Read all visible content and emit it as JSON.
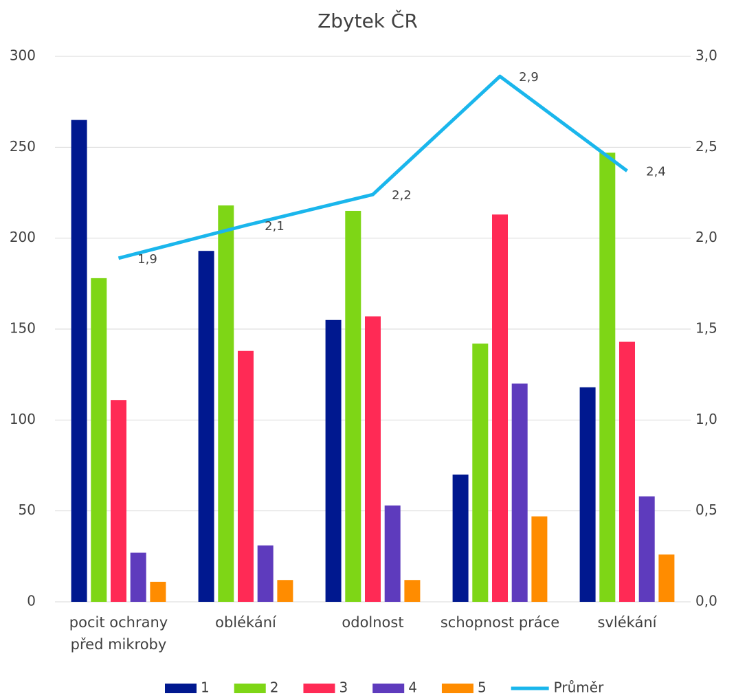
{
  "chart_data": {
    "type": "bar",
    "title": "Zbytek ČR",
    "categories": [
      "pocit ochrany před mikroby",
      "oblékání",
      "odolnost",
      "schopnost práce",
      "svlékání"
    ],
    "series": [
      {
        "name": "1",
        "color": "#00188f",
        "values": [
          265,
          193,
          155,
          70,
          118
        ]
      },
      {
        "name": "2",
        "color": "#7ed616",
        "values": [
          178,
          218,
          215,
          142,
          247
        ]
      },
      {
        "name": "3",
        "color": "#ff2a55",
        "values": [
          111,
          138,
          157,
          213,
          143
        ]
      },
      {
        "name": "4",
        "color": "#5e3bbd",
        "values": [
          27,
          31,
          53,
          120,
          58
        ]
      },
      {
        "name": "5",
        "color": "#ff8c00",
        "values": [
          11,
          12,
          12,
          47,
          26
        ]
      },
      {
        "name": "Průměr",
        "type": "line",
        "axis": "y2",
        "color": "#1ab6ec",
        "values": [
          1.89,
          2.07,
          2.24,
          2.89,
          2.37
        ],
        "value_labels": [
          "1,9",
          "2,1",
          "2,2",
          "2,9",
          "2,4"
        ]
      }
    ],
    "ylim": [
      0,
      300
    ],
    "yticks": [
      0,
      50,
      100,
      150,
      200,
      250,
      300
    ],
    "y2lim": [
      0,
      3
    ],
    "y2ticks": [
      {
        "value": 0,
        "label": "0,0"
      },
      {
        "value": 0.5,
        "label": "0,5"
      },
      {
        "value": 1,
        "label": "1,0"
      },
      {
        "value": 1.5,
        "label": "1,5"
      },
      {
        "value": 2,
        "label": "2,0"
      },
      {
        "value": 2.5,
        "label": "2,5"
      },
      {
        "value": 3,
        "label": "3,0"
      }
    ],
    "grid": true,
    "legend": "bottom"
  }
}
